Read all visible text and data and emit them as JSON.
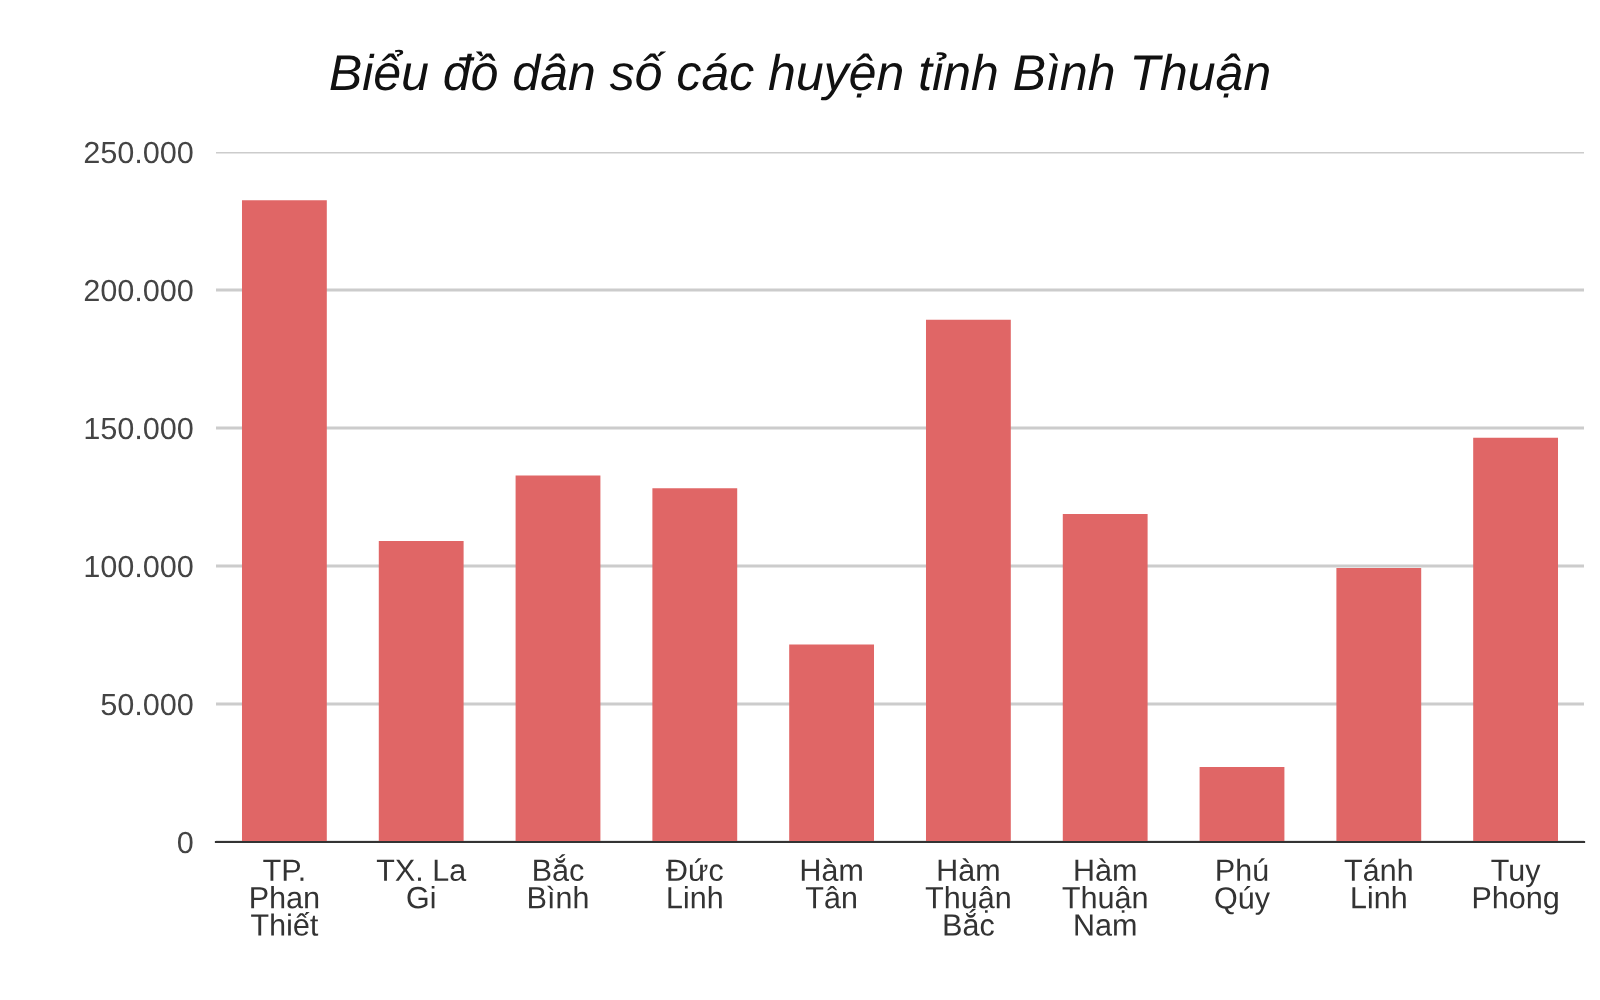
{
  "chart_data": {
    "type": "bar",
    "title": "Biểu đồ dân số các huyện tỉnh Bình Thuận",
    "categories": [
      "TP. Phan Thiết",
      "TX. La Gi",
      "Bắc Bình",
      "Đức Linh",
      "Hàm Tân",
      "Hàm Thuận Bắc",
      "Hàm Thuận Nam",
      "Phú Qúy",
      "Tánh Linh",
      "Tuy Phong"
    ],
    "values": [
      232500,
      109100,
      132800,
      128200,
      71600,
      189200,
      118800,
      27200,
      99300,
      146500
    ],
    "color": "#e06666",
    "ylim": [
      0,
      250000
    ],
    "yticks": [
      {
        "value": 0,
        "label": "0"
      },
      {
        "value": 50000,
        "label": "50.000"
      },
      {
        "value": 100000,
        "label": "100.000"
      },
      {
        "value": 150000,
        "label": "150.000"
      },
      {
        "value": 200000,
        "label": "200.000"
      },
      {
        "value": 250000,
        "label": "250.000"
      }
    ],
    "grid": "y"
  }
}
